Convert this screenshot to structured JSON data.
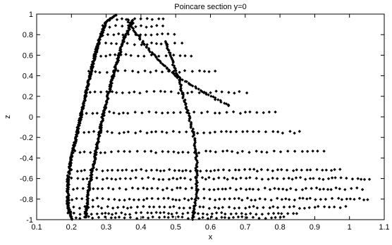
{
  "chart_data": {
    "type": "scatter",
    "title": "Poincare section y=0",
    "xlabel": "x",
    "ylabel": "z",
    "xlim": [
      0.1,
      1.1
    ],
    "ylim": [
      -1,
      1
    ],
    "xticks": [
      0.1,
      0.2,
      0.3,
      0.4,
      0.5,
      0.6,
      0.7,
      0.8,
      0.9,
      1.0,
      1.1
    ],
    "xtick_labels": [
      "0.1",
      "0.2",
      "0.3",
      "0.4",
      "0.5",
      "0.6",
      "0.7",
      "0.8",
      "0.9",
      "1",
      "1.1"
    ],
    "yticks": [
      -1,
      -0.8,
      -0.6,
      -0.4,
      -0.2,
      0,
      0.2,
      0.4,
      0.6,
      0.8,
      1
    ],
    "ytick_labels": [
      "-1",
      "-0.8",
      "-0.6",
      "-0.4",
      "-0.2",
      "0",
      "0.2",
      "0.4",
      "0.6",
      "0.8",
      "1"
    ],
    "grid": false,
    "marker": "diamond",
    "marker_color": "#000000",
    "rows": [
      {
        "z": 0.95,
        "x_start": 0.31,
        "x_end": 0.47
      },
      {
        "z": 0.88,
        "x_start": 0.29,
        "x_end": 0.48
      },
      {
        "z": 0.8,
        "x_start": 0.29,
        "x_end": 0.51
      },
      {
        "z": 0.71,
        "x_start": 0.28,
        "x_end": 0.53
      },
      {
        "z": 0.6,
        "x_start": 0.27,
        "x_end": 0.56
      },
      {
        "z": 0.44,
        "x_start": 0.25,
        "x_end": 0.62
      },
      {
        "z": 0.24,
        "x_start": 0.24,
        "x_end": 0.71
      },
      {
        "z": 0.04,
        "x_start": 0.23,
        "x_end": 0.79
      },
      {
        "z": -0.15,
        "x_start": 0.22,
        "x_end": 0.86
      },
      {
        "z": -0.34,
        "x_start": 0.21,
        "x_end": 0.93
      },
      {
        "z": -0.52,
        "x_start": 0.2,
        "x_end": 0.98
      },
      {
        "z": -0.6,
        "x_start": 0.2,
        "x_end": 1.06
      },
      {
        "z": -0.7,
        "x_start": 0.19,
        "x_end": 1.04
      },
      {
        "z": -0.8,
        "x_start": 0.19,
        "x_end": 1.06
      },
      {
        "z": -0.88,
        "x_start": 0.19,
        "x_end": 0.99
      },
      {
        "z": -0.94,
        "x_start": 0.19,
        "x_end": 0.85
      },
      {
        "z": -0.98,
        "x_start": 0.2,
        "x_end": 0.82
      }
    ],
    "envelope_outer": [
      [
        0.2,
        -1.0
      ],
      [
        0.19,
        -0.85
      ],
      [
        0.19,
        -0.6
      ],
      [
        0.2,
        -0.4
      ],
      [
        0.22,
        -0.1
      ],
      [
        0.24,
        0.2
      ],
      [
        0.26,
        0.5
      ],
      [
        0.28,
        0.75
      ],
      [
        0.3,
        0.92
      ],
      [
        0.33,
        1.0
      ]
    ],
    "envelope_inner": [
      [
        0.24,
        -0.98
      ],
      [
        0.25,
        -0.7
      ],
      [
        0.27,
        -0.35
      ],
      [
        0.29,
        0.0
      ],
      [
        0.32,
        0.4
      ],
      [
        0.35,
        0.75
      ],
      [
        0.38,
        0.95
      ]
    ],
    "diagonal_curves": [
      [
        [
          0.55,
          -1.0
        ],
        [
          0.56,
          -0.7
        ],
        [
          0.56,
          -0.4
        ],
        [
          0.55,
          -0.15
        ],
        [
          0.53,
          0.1
        ],
        [
          0.51,
          0.35
        ],
        [
          0.49,
          0.55
        ],
        [
          0.47,
          0.75
        ]
      ],
      [
        [
          0.36,
          0.95
        ],
        [
          0.4,
          0.75
        ],
        [
          0.45,
          0.55
        ],
        [
          0.5,
          0.4
        ],
        [
          0.55,
          0.3
        ],
        [
          0.6,
          0.2
        ],
        [
          0.66,
          0.1
        ]
      ]
    ]
  }
}
